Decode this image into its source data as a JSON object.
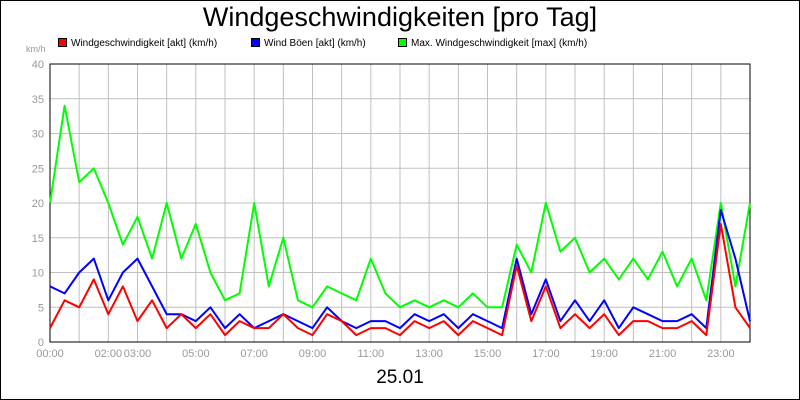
{
  "chart_data": {
    "type": "line",
    "title": "Windgeschwindigkeiten [pro Tag]",
    "y_unit_label": "km/h",
    "xlabel": "25.01",
    "ylim": [
      0,
      40
    ],
    "y_ticks": [
      "0",
      "5",
      "10",
      "15",
      "20",
      "25",
      "30",
      "35",
      "40"
    ],
    "xlim": [
      0,
      24
    ],
    "x_ticks": [
      {
        "value": 0,
        "label": "00:00"
      },
      {
        "value": 2,
        "label": "02:00"
      },
      {
        "value": 3,
        "label": "03:00"
      },
      {
        "value": 5,
        "label": "05:00"
      },
      {
        "value": 7,
        "label": "07:00"
      },
      {
        "value": 9,
        "label": "09:00"
      },
      {
        "value": 11,
        "label": "11:00"
      },
      {
        "value": 13,
        "label": "13:00"
      },
      {
        "value": 15,
        "label": "15:00"
      },
      {
        "value": 17,
        "label": "17:00"
      },
      {
        "value": 19,
        "label": "19:00"
      },
      {
        "value": 21,
        "label": "21:00"
      },
      {
        "value": 23,
        "label": "23:00"
      }
    ],
    "grid": true,
    "legend_position": "top-left",
    "x": [
      0,
      0.5,
      1,
      1.5,
      2,
      2.5,
      3,
      3.5,
      4,
      4.5,
      5,
      5.5,
      6,
      6.5,
      7,
      7.5,
      8,
      8.5,
      9,
      9.5,
      10,
      10.5,
      11,
      11.5,
      12,
      12.5,
      13,
      13.5,
      14,
      14.5,
      15,
      15.5,
      16,
      16.5,
      17,
      17.5,
      18,
      18.5,
      19,
      19.5,
      20,
      20.5,
      21,
      21.5,
      22,
      22.5,
      23,
      23.5,
      24
    ],
    "series": [
      {
        "name": "Windgeschwindigkeit [akt] (km/h)",
        "color": "#ff0000",
        "values": [
          2,
          6,
          5,
          9,
          4,
          8,
          3,
          6,
          2,
          4,
          2,
          4,
          1,
          3,
          2,
          2,
          4,
          2,
          1,
          4,
          3,
          1,
          2,
          2,
          1,
          3,
          2,
          3,
          1,
          3,
          2,
          1,
          11,
          3,
          8,
          2,
          4,
          2,
          4,
          1,
          3,
          3,
          2,
          2,
          3,
          1,
          17,
          5,
          2
        ]
      },
      {
        "name": "Wind Böen [akt] (km/h)",
        "color": "#0000ff",
        "values": [
          8,
          7,
          10,
          12,
          6,
          10,
          12,
          8,
          4,
          4,
          3,
          5,
          2,
          4,
          2,
          3,
          4,
          3,
          2,
          5,
          3,
          2,
          3,
          3,
          2,
          4,
          3,
          4,
          2,
          4,
          3,
          2,
          12,
          4,
          9,
          3,
          6,
          3,
          6,
          2,
          5,
          4,
          3,
          3,
          4,
          2,
          19,
          12,
          3
        ]
      },
      {
        "name": "Max. Windgeschwindigkeit [max] (km/h)",
        "color": "#00ff00",
        "values": [
          20,
          34,
          23,
          25,
          20,
          14,
          18,
          12,
          20,
          12,
          17,
          10,
          6,
          7,
          20,
          8,
          15,
          6,
          5,
          8,
          7,
          6,
          12,
          7,
          5,
          6,
          5,
          6,
          5,
          7,
          5,
          5,
          14,
          10,
          20,
          13,
          15,
          10,
          12,
          9,
          12,
          9,
          13,
          8,
          12,
          6,
          20,
          8,
          20
        ]
      }
    ]
  }
}
